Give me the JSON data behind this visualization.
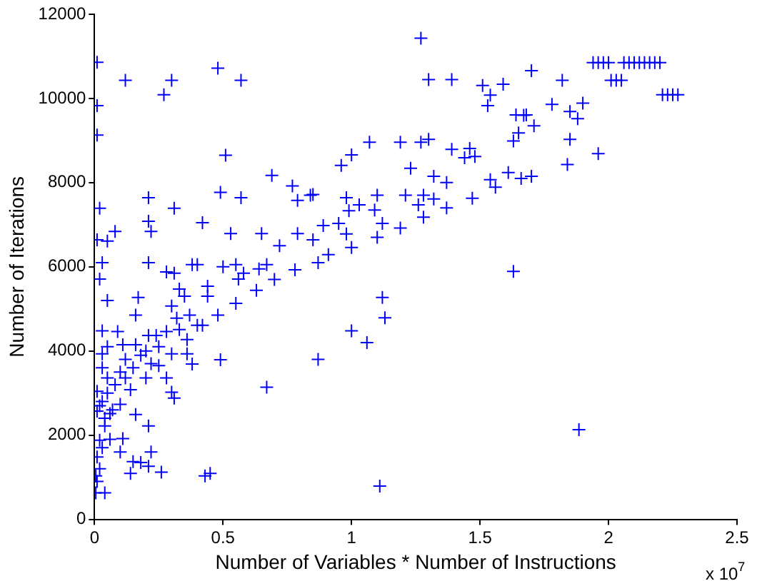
{
  "chart_data": {
    "type": "scatter",
    "xlabel": "Number of Variables * Number of Instructions",
    "ylabel": "Number of Iterations",
    "xlim": [
      0,
      2.5
    ],
    "xticks": [
      0,
      0.5,
      1,
      1.5,
      2,
      2.5
    ],
    "ylim": [
      0,
      12000
    ],
    "yticks": [
      0,
      2000,
      4000,
      6000,
      8000,
      10000,
      12000
    ],
    "grid": false,
    "marker": "cross",
    "annotations": [
      "x 10$^{7}$"
    ],
    "series": [
      {
        "color": "#0000ff",
        "x": [
          0.005,
          0.005,
          0.01,
          0.02,
          0.04,
          0.06,
          0.1,
          0.14,
          0.2,
          0.25,
          0.3,
          0.36,
          0.42,
          0.48,
          0.55,
          0.63,
          0.7,
          0.78,
          0.87,
          0.91,
          1.0,
          1.1,
          1.19,
          1.28,
          1.37,
          1.47,
          1.56,
          1.66,
          1.7,
          1.84,
          1.96,
          0.01,
          0.12,
          0.3,
          0.27,
          0.48,
          0.57,
          0.01,
          0.01,
          0.51,
          0.69,
          0.77,
          0.85,
          0.79,
          0.49,
          0.57,
          0.21,
          0.02,
          0.31,
          0.21,
          0.42,
          0.22,
          0.08,
          0.05,
          0.01,
          0.53,
          0.65,
          0.72,
          0.79,
          0.85,
          0.21,
          0.03,
          0.02,
          0.05,
          0.28,
          0.31,
          0.38,
          0.4,
          0.5,
          0.55,
          0.58,
          0.64,
          0.67,
          0.56,
          0.33,
          0.44,
          0.17,
          0.3,
          0.35,
          0.44,
          0.16,
          0.37,
          0.32,
          0.03,
          0.09,
          0.21,
          0.24,
          0.28,
          0.33,
          0.4,
          0.03,
          0.11,
          0.16,
          0.36,
          0.38,
          0.49,
          0.28,
          0.01,
          0.05,
          0.12,
          0.3,
          0.31,
          0.67,
          0.01,
          0.16,
          0.21,
          0.11,
          0.1,
          0.22,
          0.15,
          0.14,
          0.18,
          0.21,
          0.26,
          0.43,
          0.45,
          0.04,
          0.03,
          0.05,
          0.08,
          0.1,
          0.12,
          0.15,
          0.18,
          0.2,
          0.22,
          0.25,
          0.07,
          0.04,
          0.02,
          0.03,
          0.06,
          0.02,
          0.01,
          0.03,
          0.05,
          1.27,
          1.3,
          1.39,
          1.51,
          1.54,
          1.59,
          1.53,
          1.7,
          1.64,
          1.68,
          1.65,
          1.63,
          1.07,
          1.19,
          1.27,
          1.3,
          1.0,
          0.96,
          1.39,
          1.46,
          1.44,
          1.48,
          1.23,
          1.32,
          1.37,
          1.61,
          1.54,
          0.84,
          0.98,
          1.03,
          0.99,
          1.1,
          1.21,
          1.28,
          1.32,
          1.26,
          1.09,
          0.89,
          0.95,
          1.12,
          0.98,
          1.63,
          1.12,
          1.13,
          1.0,
          1.06,
          0.87,
          1.11,
          1.82,
          1.78,
          1.85,
          1.9,
          1.88,
          1.71,
          1.67,
          1.85,
          1.885,
          1.94,
          1.96,
          1.98,
          2.0,
          2.06,
          2.08,
          2.1,
          2.12,
          2.14,
          2.16,
          2.18,
          2.2,
          2.01,
          2.03,
          2.05,
          2.21,
          2.23,
          2.25,
          2.27
        ],
        "values": [
          630,
          1030,
          1480,
          1880,
          2220,
          2510,
          2730,
          3080,
          3360,
          3650,
          3930,
          4270,
          4610,
          4850,
          5130,
          5440,
          5700,
          5930,
          6100,
          6290,
          6460,
          6700,
          6920,
          7180,
          7400,
          7630,
          7890,
          8100,
          8150,
          8430,
          8690,
          10860,
          10430,
          10430,
          10090,
          10720,
          10430,
          9830,
          9130,
          8650,
          8170,
          7920,
          7720,
          7580,
          7770,
          7640,
          7640,
          7390,
          7390,
          7080,
          7050,
          6840,
          6840,
          6610,
          6640,
          6790,
          6790,
          6500,
          6790,
          6640,
          6100,
          6100,
          5710,
          5200,
          5880,
          5850,
          6050,
          6050,
          6000,
          6050,
          5850,
          5950,
          6050,
          5710,
          5470,
          5540,
          5270,
          5070,
          5300,
          5300,
          4850,
          4850,
          4780,
          4480,
          4460,
          4370,
          4370,
          4460,
          4510,
          4610,
          3930,
          4150,
          4150,
          3930,
          3690,
          3790,
          3360,
          3040,
          3360,
          3360,
          3020,
          2880,
          3140,
          2570,
          2490,
          2220,
          1920,
          1600,
          1600,
          1370,
          1090,
          1350,
          1260,
          1120,
          1030,
          1090,
          630,
          2800,
          3000,
          3200,
          3500,
          3800,
          3600,
          3900,
          4000,
          3700,
          4100,
          2600,
          2400,
          2700,
          1700,
          1900,
          1200,
          900,
          3600,
          4100,
          11430,
          10450,
          10450,
          10310,
          10080,
          10340,
          9830,
          10660,
          9610,
          9610,
          9180,
          8990,
          8960,
          8960,
          8960,
          9030,
          8660,
          8410,
          8790,
          8810,
          8590,
          8620,
          8340,
          8150,
          8000,
          8240,
          8070,
          7700,
          7640,
          7470,
          7330,
          7700,
          7700,
          7700,
          7610,
          7470,
          7350,
          6980,
          7030,
          7030,
          6780,
          5890,
          5270,
          4790,
          4480,
          4200,
          3800,
          790,
          10430,
          9860,
          9690,
          9890,
          9520,
          9350,
          9600,
          9030,
          2130,
          10850,
          10850,
          10850,
          10850,
          10850,
          10850,
          10850,
          10850,
          10850,
          10850,
          10850,
          10850,
          10430,
          10430,
          10430,
          10090,
          10090,
          10090,
          10090
        ]
      }
    ]
  }
}
